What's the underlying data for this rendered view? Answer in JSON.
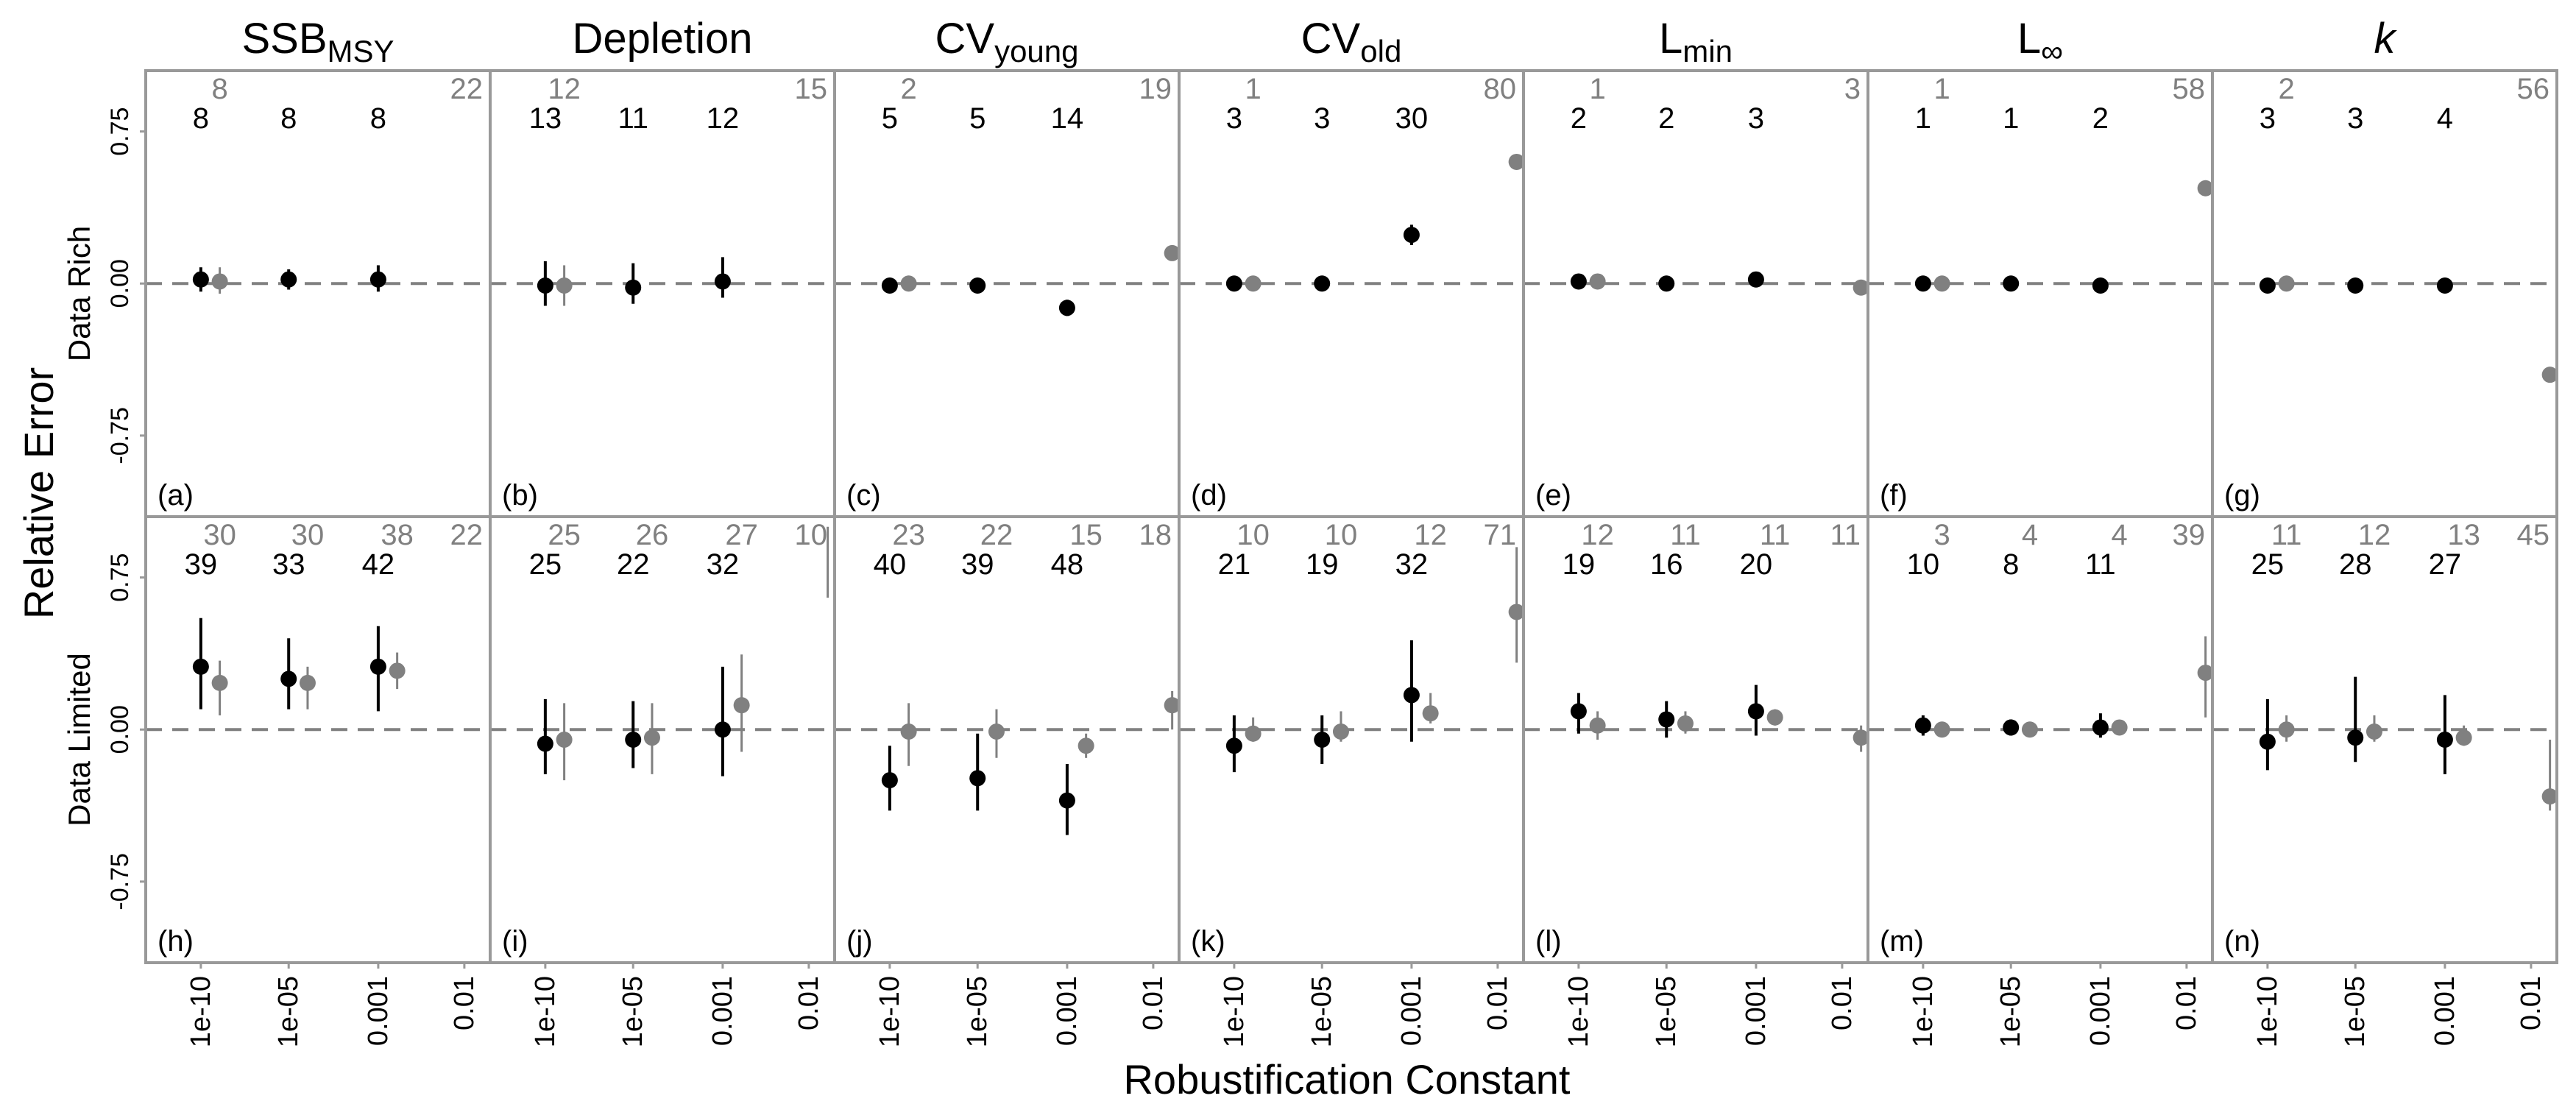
{
  "chart_data": {
    "type": "scatter",
    "y_axis_title": "Relative Error",
    "x_axis_title": "Robustification Constant",
    "x_categories": [
      "1e-10",
      "1e-05",
      "0.001",
      "0.01"
    ],
    "y_ticks": [
      -0.75,
      0.0,
      0.75
    ],
    "y_tick_labels": [
      "-0.75",
      "0.00",
      "0.75"
    ],
    "ylim": [
      -1.15,
      1.05
    ],
    "reference_line_y": 0,
    "colors": {
      "black_series": "#000000",
      "gray_series": "#808080",
      "frame": "#999999",
      "ref_line": "#808080"
    },
    "columns": [
      {
        "title": "SSB",
        "subscript": "MSY",
        "italic": false
      },
      {
        "title": "Depletion",
        "subscript": "",
        "italic": false
      },
      {
        "title": "CV",
        "subscript": "young",
        "italic": false
      },
      {
        "title": "CV",
        "subscript": "old",
        "italic": false
      },
      {
        "title": "L",
        "subscript": "min",
        "italic": false
      },
      {
        "title": "L",
        "subscript": "∞",
        "italic": false
      },
      {
        "title": "k",
        "subscript": "",
        "italic": true
      }
    ],
    "rows": [
      {
        "label": "Data Rich",
        "panels": [
          {
            "letter": "(a)",
            "black": [
              {
                "x": "1e-10",
                "y": 0.02,
                "lo": -0.04,
                "hi": 0.08,
                "n": "8"
              },
              {
                "x": "1e-05",
                "y": 0.02,
                "lo": -0.03,
                "hi": 0.07,
                "n": "8"
              },
              {
                "x": "0.001",
                "y": 0.02,
                "lo": -0.04,
                "hi": 0.09,
                "n": "8"
              }
            ],
            "gray": [
              {
                "x": "1e-10",
                "y": 0.01,
                "lo": -0.05,
                "hi": 0.08,
                "n": "8"
              },
              {
                "x": "0.01",
                "y": null,
                "n": "22"
              }
            ]
          },
          {
            "letter": "(b)",
            "black": [
              {
                "x": "1e-10",
                "y": -0.01,
                "lo": -0.11,
                "hi": 0.11,
                "n": "13"
              },
              {
                "x": "1e-05",
                "y": -0.02,
                "lo": -0.1,
                "hi": 0.1,
                "n": "11"
              },
              {
                "x": "0.001",
                "y": 0.01,
                "lo": -0.07,
                "hi": 0.13,
                "n": "12"
              }
            ],
            "gray": [
              {
                "x": "1e-10",
                "y": -0.01,
                "lo": -0.11,
                "hi": 0.09,
                "n": "12"
              },
              {
                "x": "0.01",
                "y": null,
                "n": "15"
              }
            ]
          },
          {
            "letter": "(c)",
            "black": [
              {
                "x": "1e-10",
                "y": -0.01,
                "lo": -0.04,
                "hi": 0.02,
                "n": "5"
              },
              {
                "x": "1e-05",
                "y": -0.01,
                "lo": -0.04,
                "hi": 0.02,
                "n": "5"
              },
              {
                "x": "0.001",
                "y": -0.12,
                "lo": -0.16,
                "hi": -0.08,
                "n": "14"
              }
            ],
            "gray": [
              {
                "x": "1e-10",
                "y": 0.0,
                "lo": 0.0,
                "hi": 0.0,
                "n": "2"
              },
              {
                "x": "0.01",
                "y": 0.15,
                "lo": 0.15,
                "hi": 0.15,
                "n": "19"
              }
            ]
          },
          {
            "letter": "(d)",
            "black": [
              {
                "x": "1e-10",
                "y": 0.0,
                "lo": 0.0,
                "hi": 0.0,
                "n": "3"
              },
              {
                "x": "1e-05",
                "y": 0.0,
                "lo": 0.0,
                "hi": 0.0,
                "n": "3"
              },
              {
                "x": "0.001",
                "y": 0.24,
                "lo": 0.19,
                "hi": 0.29,
                "n": "30"
              }
            ],
            "gray": [
              {
                "x": "1e-10",
                "y": 0.0,
                "lo": 0.0,
                "hi": 0.0,
                "n": "1"
              },
              {
                "x": "0.01",
                "y": 0.6,
                "lo": 0.6,
                "hi": 0.6,
                "n": "80"
              }
            ]
          },
          {
            "letter": "(e)",
            "black": [
              {
                "x": "1e-10",
                "y": 0.01,
                "lo": 0.01,
                "hi": 0.01,
                "n": "2"
              },
              {
                "x": "1e-05",
                "y": 0.0,
                "lo": 0.0,
                "hi": 0.0,
                "n": "2"
              },
              {
                "x": "0.001",
                "y": 0.02,
                "lo": 0.02,
                "hi": 0.02,
                "n": "3"
              }
            ],
            "gray": [
              {
                "x": "1e-10",
                "y": 0.01,
                "lo": 0.01,
                "hi": 0.01,
                "n": "1"
              },
              {
                "x": "0.01",
                "y": -0.02,
                "lo": -0.02,
                "hi": -0.02,
                "n": "3"
              }
            ]
          },
          {
            "letter": "(f)",
            "black": [
              {
                "x": "1e-10",
                "y": 0.0,
                "lo": 0.0,
                "hi": 0.0,
                "n": "1"
              },
              {
                "x": "1e-05",
                "y": 0.0,
                "lo": 0.0,
                "hi": 0.0,
                "n": "1"
              },
              {
                "x": "0.001",
                "y": -0.01,
                "lo": -0.01,
                "hi": -0.01,
                "n": "2"
              }
            ],
            "gray": [
              {
                "x": "1e-10",
                "y": 0.0,
                "lo": 0.0,
                "hi": 0.0,
                "n": "1"
              },
              {
                "x": "0.01",
                "y": 0.47,
                "lo": 0.47,
                "hi": 0.47,
                "n": "58"
              }
            ]
          },
          {
            "letter": "(g)",
            "black": [
              {
                "x": "1e-10",
                "y": -0.01,
                "lo": -0.01,
                "hi": -0.01,
                "n": "3"
              },
              {
                "x": "1e-05",
                "y": -0.01,
                "lo": -0.01,
                "hi": -0.01,
                "n": "3"
              },
              {
                "x": "0.001",
                "y": -0.01,
                "lo": -0.04,
                "hi": 0.02,
                "n": "4"
              }
            ],
            "gray": [
              {
                "x": "1e-10",
                "y": 0.0,
                "lo": 0.0,
                "hi": 0.0,
                "n": "2"
              },
              {
                "x": "0.01",
                "y": -0.45,
                "lo": -0.45,
                "hi": -0.45,
                "n": "56"
              }
            ]
          }
        ]
      },
      {
        "label": "Data Limited",
        "panels": [
          {
            "letter": "(h)",
            "black": [
              {
                "x": "1e-10",
                "y": 0.31,
                "lo": 0.1,
                "hi": 0.55,
                "n": "39"
              },
              {
                "x": "1e-05",
                "y": 0.25,
                "lo": 0.1,
                "hi": 0.45,
                "n": "33"
              },
              {
                "x": "0.001",
                "y": 0.31,
                "lo": 0.09,
                "hi": 0.51,
                "n": "42"
              }
            ],
            "gray": [
              {
                "x": "1e-10",
                "y": 0.23,
                "lo": 0.07,
                "hi": 0.34,
                "n": "30"
              },
              {
                "x": "1e-05",
                "y": 0.23,
                "lo": 0.1,
                "hi": 0.31,
                "n": "30"
              },
              {
                "x": "0.001",
                "y": 0.29,
                "lo": 0.2,
                "hi": 0.38,
                "n": "38"
              },
              {
                "x": "0.01",
                "y": null,
                "n": "22"
              }
            ]
          },
          {
            "letter": "(i)",
            "black": [
              {
                "x": "1e-10",
                "y": -0.07,
                "lo": -0.22,
                "hi": 0.15,
                "n": "25"
              },
              {
                "x": "1e-05",
                "y": -0.05,
                "lo": -0.19,
                "hi": 0.14,
                "n": "22"
              },
              {
                "x": "0.001",
                "y": 0.0,
                "lo": -0.23,
                "hi": 0.31,
                "n": "32"
              }
            ],
            "gray": [
              {
                "x": "1e-10",
                "y": -0.05,
                "lo": -0.25,
                "hi": 0.13,
                "n": "25"
              },
              {
                "x": "1e-05",
                "y": -0.04,
                "lo": -0.22,
                "hi": 0.13,
                "n": "26"
              },
              {
                "x": "0.001",
                "y": 0.12,
                "lo": -0.11,
                "hi": 0.37,
                "n": "27"
              },
              {
                "x": "0.01",
                "y": null,
                "lo": 0.65,
                "hi": 1.0,
                "n": "10"
              }
            ]
          },
          {
            "letter": "(j)",
            "black": [
              {
                "x": "1e-10",
                "y": -0.25,
                "lo": -0.4,
                "hi": -0.08,
                "n": "40"
              },
              {
                "x": "1e-05",
                "y": -0.24,
                "lo": -0.4,
                "hi": -0.02,
                "n": "39"
              },
              {
                "x": "0.001",
                "y": -0.35,
                "lo": -0.52,
                "hi": -0.17,
                "n": "48"
              }
            ],
            "gray": [
              {
                "x": "1e-10",
                "y": -0.01,
                "lo": -0.18,
                "hi": 0.13,
                "n": "23"
              },
              {
                "x": "1e-05",
                "y": -0.01,
                "lo": -0.14,
                "hi": 0.1,
                "n": "22"
              },
              {
                "x": "0.001",
                "y": -0.08,
                "lo": -0.14,
                "hi": -0.02,
                "n": "15"
              },
              {
                "x": "0.01",
                "y": 0.12,
                "lo": 0.0,
                "hi": 0.19,
                "n": "18"
              }
            ]
          },
          {
            "letter": "(k)",
            "black": [
              {
                "x": "1e-10",
                "y": -0.08,
                "lo": -0.21,
                "hi": 0.07,
                "n": "21"
              },
              {
                "x": "1e-05",
                "y": -0.05,
                "lo": -0.17,
                "hi": 0.07,
                "n": "19"
              },
              {
                "x": "0.001",
                "y": 0.17,
                "lo": -0.06,
                "hi": 0.44,
                "n": "32"
              }
            ],
            "gray": [
              {
                "x": "1e-10",
                "y": -0.02,
                "lo": -0.06,
                "hi": 0.06,
                "n": "10"
              },
              {
                "x": "1e-05",
                "y": -0.01,
                "lo": -0.06,
                "hi": 0.09,
                "n": "10"
              },
              {
                "x": "0.001",
                "y": 0.08,
                "lo": 0.03,
                "hi": 0.18,
                "n": "12"
              },
              {
                "x": "0.01",
                "y": 0.58,
                "lo": 0.33,
                "hi": 0.9,
                "n": "71"
              }
            ]
          },
          {
            "letter": "(l)",
            "black": [
              {
                "x": "1e-10",
                "y": 0.09,
                "lo": -0.02,
                "hi": 0.18,
                "n": "19"
              },
              {
                "x": "1e-05",
                "y": 0.05,
                "lo": -0.04,
                "hi": 0.14,
                "n": "16"
              },
              {
                "x": "0.001",
                "y": 0.09,
                "lo": -0.03,
                "hi": 0.22,
                "n": "20"
              }
            ],
            "gray": [
              {
                "x": "1e-10",
                "y": 0.02,
                "lo": -0.05,
                "hi": 0.09,
                "n": "12"
              },
              {
                "x": "1e-05",
                "y": 0.03,
                "lo": -0.02,
                "hi": 0.09,
                "n": "11"
              },
              {
                "x": "0.001",
                "y": 0.06,
                "lo": 0.02,
                "hi": 0.1,
                "n": "11"
              },
              {
                "x": "0.01",
                "y": -0.04,
                "lo": -0.11,
                "hi": 0.02,
                "n": "11"
              }
            ]
          },
          {
            "letter": "(m)",
            "black": [
              {
                "x": "1e-10",
                "y": 0.02,
                "lo": -0.03,
                "hi": 0.07,
                "n": "10"
              },
              {
                "x": "1e-05",
                "y": 0.01,
                "lo": -0.03,
                "hi": 0.05,
                "n": "8"
              },
              {
                "x": "0.001",
                "y": 0.01,
                "lo": -0.04,
                "hi": 0.08,
                "n": "11"
              }
            ],
            "gray": [
              {
                "x": "1e-10",
                "y": 0.0,
                "lo": 0.0,
                "hi": 0.0,
                "n": "3"
              },
              {
                "x": "1e-05",
                "y": 0.0,
                "lo": 0.0,
                "hi": 0.0,
                "n": "4"
              },
              {
                "x": "0.001",
                "y": 0.01,
                "lo": 0.0,
                "hi": 0.02,
                "n": "4"
              },
              {
                "x": "0.01",
                "y": 0.28,
                "lo": 0.06,
                "hi": 0.46,
                "n": "39"
              }
            ]
          },
          {
            "letter": "(n)",
            "black": [
              {
                "x": "1e-10",
                "y": -0.06,
                "lo": -0.2,
                "hi": 0.15,
                "n": "25"
              },
              {
                "x": "1e-05",
                "y": -0.04,
                "lo": -0.16,
                "hi": 0.26,
                "n": "28"
              },
              {
                "x": "0.001",
                "y": -0.05,
                "lo": -0.22,
                "hi": 0.17,
                "n": "27"
              }
            ],
            "gray": [
              {
                "x": "1e-10",
                "y": 0.0,
                "lo": -0.06,
                "hi": 0.07,
                "n": "11"
              },
              {
                "x": "1e-05",
                "y": -0.01,
                "lo": -0.06,
                "hi": 0.07,
                "n": "12"
              },
              {
                "x": "0.001",
                "y": -0.04,
                "lo": -0.08,
                "hi": 0.02,
                "n": "13"
              },
              {
                "x": "0.01",
                "y": -0.33,
                "lo": -0.4,
                "hi": -0.05,
                "n": "45"
              }
            ]
          }
        ]
      }
    ]
  }
}
